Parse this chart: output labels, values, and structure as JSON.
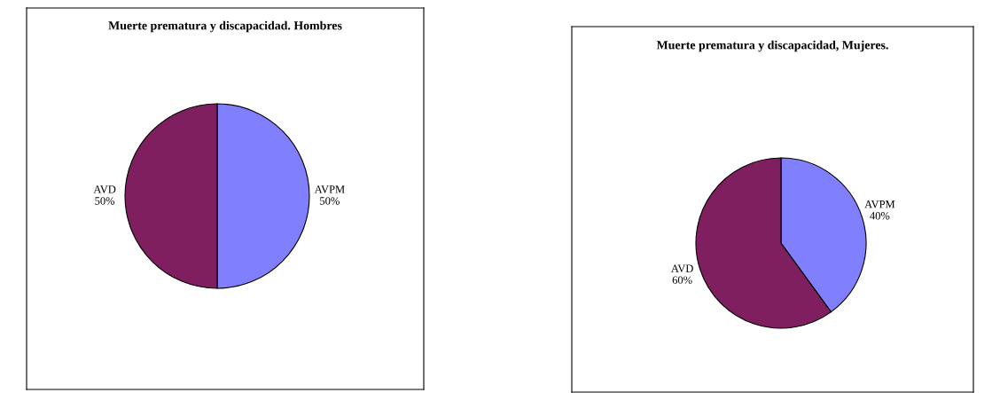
{
  "chart_data": [
    {
      "type": "pie",
      "title": "Muerte prematura y discapacidad. Hombres",
      "categories": [
        "AVPM",
        "AVD"
      ],
      "values": [
        50,
        50
      ],
      "colors": [
        "#8080ff",
        "#7f1f5f"
      ],
      "value_labels": [
        "50%",
        "50%"
      ],
      "legend": false
    },
    {
      "type": "pie",
      "title": "Muerte prematura y discapacidad, Mujeres.",
      "categories": [
        "AVPM",
        "AVD"
      ],
      "values": [
        40,
        60
      ],
      "colors": [
        "#8080ff",
        "#7f1f5f"
      ],
      "value_labels": [
        "40%",
        "60%"
      ],
      "legend": false
    }
  ]
}
